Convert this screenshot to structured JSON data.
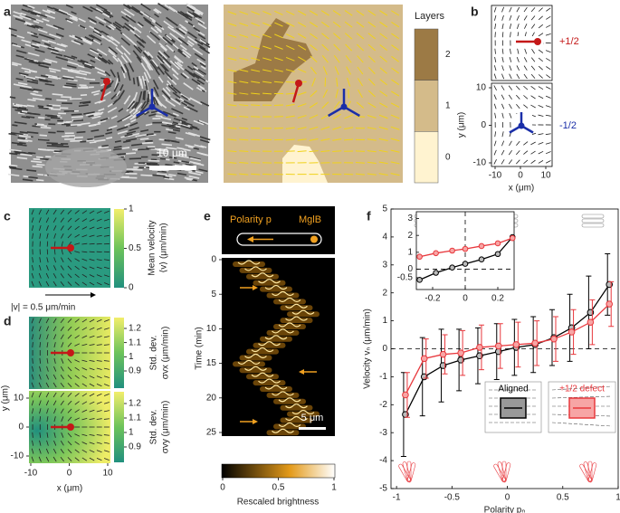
{
  "panels": {
    "labels": [
      "a",
      "b",
      "c",
      "d",
      "e",
      "f"
    ],
    "a": {
      "colorbar_title": "Layers",
      "colorbar_ticks": [
        2,
        1,
        0
      ],
      "colorbar_colors": [
        "#9c7a45",
        "#d4bb8a",
        "#fff3d0"
      ],
      "scale_bar": "10 μm"
    },
    "b": {
      "defects": [
        "+1/2",
        "-1/2"
      ],
      "xlabel": "x (μm)",
      "ylabel": "y (μm)",
      "xticks": [
        -10,
        0,
        10
      ],
      "yticks": [
        10,
        0,
        -10
      ]
    },
    "c": {
      "colorbar_label": [
        "Mean velocity",
        "⟨v⟩ (μm/min)"
      ],
      "colorbar_ticks": [
        0,
        0.5,
        1
      ],
      "arrow_label": "|v| = 0.5 μm/min"
    },
    "d": {
      "colorbars": [
        {
          "label": [
            "Std. dev.",
            "σvx (μm/min)"
          ],
          "ticks": [
            0.9,
            1,
            1.1,
            1.2
          ]
        },
        {
          "label": [
            "Std. dev.",
            "σvy (μm/min)"
          ],
          "ticks": [
            0.9,
            1,
            1.1,
            1.2
          ]
        }
      ],
      "xlabel": "x (μm)",
      "ylabel": "y (μm)",
      "xticks": [
        -10,
        0,
        10
      ],
      "yticks": [
        10,
        0,
        -10
      ]
    },
    "e": {
      "polarity": "Polarity p",
      "mglb": "MglB",
      "ylabel": "Time (min)",
      "yticks": [
        0,
        5,
        10,
        15,
        20,
        25
      ],
      "scale_bar": "5 μm",
      "colorbar_label": "Rescaled brightness",
      "colorbar_ticks": [
        0,
        0.5,
        1
      ]
    }
  },
  "chart_data": [
    {
      "type": "line",
      "xlabel": "Polarity pₙ",
      "ylabel": "Velocity vₙ (μm/min)",
      "x": [
        -0.92,
        -0.75,
        -0.58,
        -0.42,
        -0.25,
        -0.08,
        0.08,
        0.25,
        0.42,
        0.58,
        0.75,
        0.92
      ],
      "series": [
        {
          "name": "Aligned",
          "color": "#000000",
          "values": [
            -2.35,
            -1.0,
            -0.6,
            -0.4,
            -0.25,
            -0.1,
            0.05,
            0.15,
            0.4,
            0.75,
            1.3,
            2.3
          ],
          "errors": [
            1.5,
            1.4,
            1.3,
            1.1,
            1.0,
            1.0,
            1.0,
            1.0,
            1.0,
            1.2,
            1.3,
            1.1
          ]
        },
        {
          "name": "+1/2 defect",
          "color": "#e8383d",
          "values": [
            -1.65,
            -0.35,
            -0.2,
            -0.15,
            0.05,
            0.1,
            0.15,
            0.2,
            0.35,
            0.6,
            0.95,
            1.6
          ],
          "errors": [
            0.8,
            0.7,
            0.7,
            0.8,
            0.8,
            0.8,
            0.8,
            0.8,
            0.8,
            0.8,
            0.8,
            0.8
          ]
        }
      ],
      "xlim": [
        -1.05,
        1.0
      ],
      "ylim": [
        -5,
        5
      ],
      "xticks": [
        -1,
        -0.5,
        0,
        0.5,
        1
      ],
      "yticks": [
        -5,
        -4,
        -3,
        -2,
        -1,
        0,
        1,
        2,
        3,
        4,
        5
      ]
    },
    {
      "type": "line",
      "x": [
        -0.28,
        -0.18,
        -0.08,
        0,
        0.1,
        0.2,
        0.29
      ],
      "series": [
        {
          "color": "#000000",
          "values": [
            -0.63,
            -0.21,
            0.1,
            0.32,
            0.58,
            0.9,
            1.9
          ]
        },
        {
          "color": "#e8383d",
          "values": [
            0.74,
            0.95,
            1.1,
            1.2,
            1.37,
            1.53,
            1.84
          ]
        }
      ],
      "xlim": [
        -0.3,
        0.3
      ],
      "ylim": [
        -1.2,
        3.4
      ],
      "xticks": [
        -0.2,
        0,
        0.2
      ],
      "yticks": [
        -0.5,
        0,
        1,
        2,
        3
      ]
    }
  ]
}
